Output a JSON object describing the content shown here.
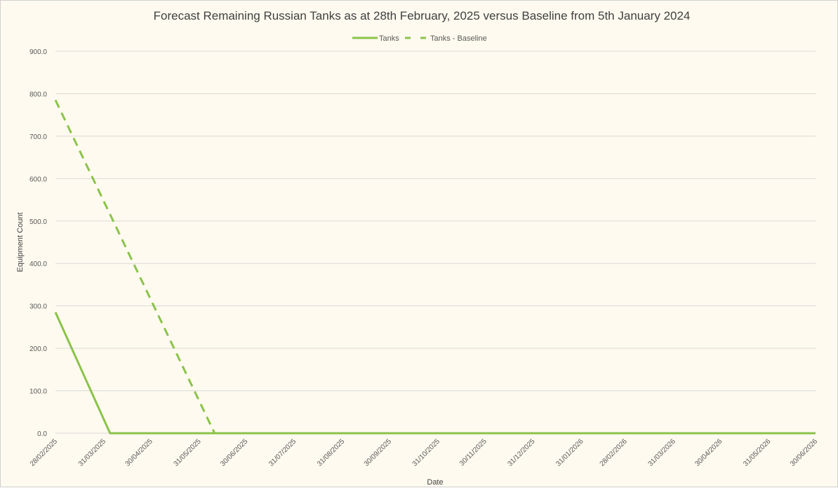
{
  "chart_data": {
    "type": "line",
    "title": "Forecast Remaining Russian Tanks as at 28th February, 2025 versus Baseline from 5th January 2024",
    "xlabel": "Date",
    "ylabel": "Equipment Count",
    "ylim": [
      0,
      900
    ],
    "yticks": [
      "0.0",
      "100.0",
      "200.0",
      "300.0",
      "400.0",
      "500.0",
      "600.0",
      "700.0",
      "800.0",
      "900.0"
    ],
    "xlim": [
      "2025-02-28",
      "2026-06-30"
    ],
    "xticks": [
      {
        "date": "2025-02-28",
        "label": "28/02/2025"
      },
      {
        "date": "2025-03-31",
        "label": "31/03/2025"
      },
      {
        "date": "2025-04-30",
        "label": "30/04/2025"
      },
      {
        "date": "2025-05-31",
        "label": "31/05/2025"
      },
      {
        "date": "2025-06-30",
        "label": "30/06/2025"
      },
      {
        "date": "2025-07-31",
        "label": "31/07/2025"
      },
      {
        "date": "2025-08-31",
        "label": "31/08/2025"
      },
      {
        "date": "2025-09-30",
        "label": "30/09/2025"
      },
      {
        "date": "2025-10-31",
        "label": "31/10/2025"
      },
      {
        "date": "2025-11-30",
        "label": "30/11/2025"
      },
      {
        "date": "2025-12-31",
        "label": "31/12/2025"
      },
      {
        "date": "2026-01-31",
        "label": "31/01/2026"
      },
      {
        "date": "2026-02-28",
        "label": "28/02/2026"
      },
      {
        "date": "2026-03-31",
        "label": "31/03/2026"
      },
      {
        "date": "2026-04-30",
        "label": "30/04/2026"
      },
      {
        "date": "2026-05-31",
        "label": "31/05/2026"
      },
      {
        "date": "2026-06-30",
        "label": "30/06/2026"
      }
    ],
    "grid": true,
    "legend_position": "top",
    "series": [
      {
        "name": "Tanks",
        "style": "solid",
        "color": "#8bc34a",
        "points": [
          [
            "2025-02-28",
            285
          ],
          [
            "2025-04-04",
            0
          ],
          [
            "2026-06-30",
            0
          ]
        ]
      },
      {
        "name": "Tanks - Baseline",
        "style": "dashed",
        "color": "#8bc34a",
        "points": [
          [
            "2025-02-28",
            785
          ],
          [
            "2025-06-10",
            0
          ]
        ]
      }
    ]
  }
}
